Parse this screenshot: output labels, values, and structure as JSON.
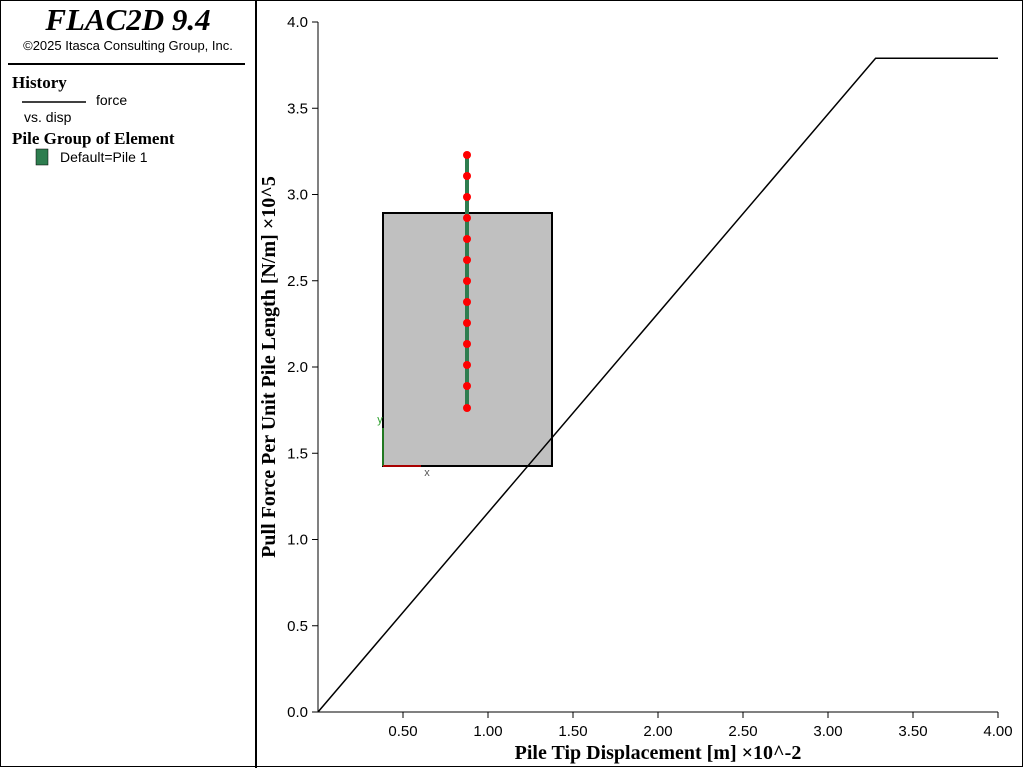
{
  "header": {
    "title": "FLAC2D 9.4",
    "copyright": "©2025 Itasca Consulting Group, Inc."
  },
  "legend": {
    "history_heading": "History",
    "history_subtitle": "vs. disp",
    "pile_heading": "Pile Group of Element",
    "pile_entry": "Default=Pile 1",
    "pile_color": "#2e7d4f"
  },
  "chart_data": {
    "type": "line",
    "x_label": "Pile Tip Displacement [m] ×10^-2",
    "y_label": "Pull Force Per Unit Pile Length [N/m] ×10^5",
    "x": [
      0,
      3.28,
      4.0
    ],
    "series": [
      {
        "name": "force",
        "color": "#000000",
        "values": [
          0,
          3.79,
          3.79
        ]
      }
    ],
    "xlim": [
      0,
      4.0
    ],
    "ylim": [
      0,
      4.0
    ],
    "xticks": [
      {
        "value": 0.5,
        "label": "0.50"
      },
      {
        "value": 1,
        "label": "1.00"
      },
      {
        "value": 1.5,
        "label": "1.50"
      },
      {
        "value": 2,
        "label": "2.00"
      },
      {
        "value": 2.5,
        "label": "2.50"
      },
      {
        "value": 3,
        "label": "3.00"
      },
      {
        "value": 3.5,
        "label": "3.50"
      },
      {
        "value": 4,
        "label": "4.00"
      }
    ],
    "yticks": [
      {
        "value": 0,
        "label": "0.0"
      },
      0.5,
      {
        "value": 1,
        "label": "1.0"
      },
      1.5,
      {
        "value": 2,
        "label": "2.0"
      },
      2.5,
      {
        "value": 3,
        "label": "3.0"
      },
      3.5,
      {
        "value": 4,
        "label": "4.0"
      }
    ]
  },
  "model_view": {
    "x_axis_label": "x",
    "y_axis_label": "y"
  }
}
